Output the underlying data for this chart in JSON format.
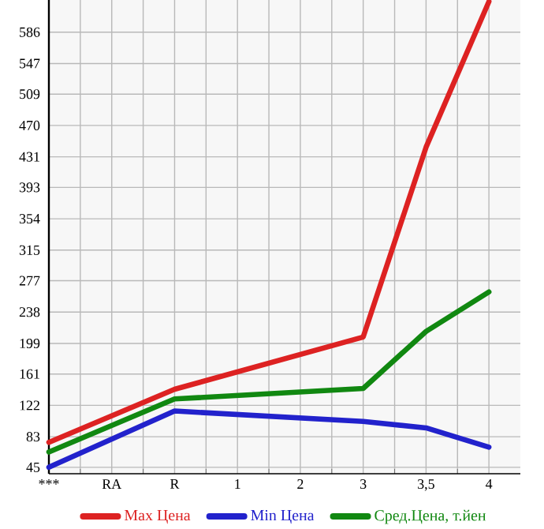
{
  "chart_data": {
    "type": "line",
    "categories": [
      "***",
      "RA",
      "R",
      "1",
      "2",
      "3",
      "3,5",
      "4"
    ],
    "series": [
      {
        "name": "Max Цена",
        "color": "#dd2222",
        "values": [
          76,
          null,
          142,
          null,
          null,
          207,
          443,
          624
        ]
      },
      {
        "name": "Min Цена",
        "color": "#2222cc",
        "values": [
          45,
          null,
          115,
          null,
          null,
          102,
          94,
          70
        ]
      },
      {
        "name": "Сред.Цена, т.йен",
        "color": "#118811",
        "values": [
          64,
          null,
          130,
          null,
          null,
          143,
          214,
          263
        ]
      }
    ],
    "ylim": [
      37,
      626
    ],
    "yticks": [
      45,
      83,
      122,
      161,
      199,
      238,
      277,
      315,
      354,
      393,
      431,
      470,
      509,
      547,
      586
    ],
    "grid": true,
    "legend": "bottom",
    "marker": "none",
    "line_style": "solid"
  }
}
